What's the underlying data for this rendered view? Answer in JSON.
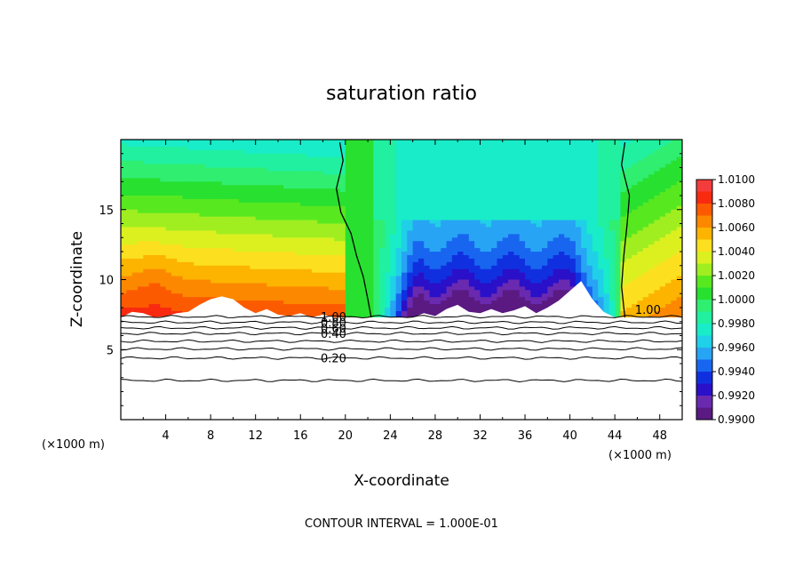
{
  "chart_data": {
    "type": "heatmap",
    "title": "saturation ratio",
    "xlabel": "X-coordinate",
    "ylabel": "Z-coordinate",
    "x_units": "(×1000 m)",
    "z_units": "(×1000 m)",
    "xlim": [
      0,
      50
    ],
    "ylim": [
      0,
      20
    ],
    "x_ticks": [
      "4",
      "8",
      "12",
      "16",
      "20",
      "24",
      "28",
      "32",
      "36",
      "40",
      "44",
      "48"
    ],
    "y_ticks": [
      "5",
      "10",
      "15"
    ],
    "colorbar": {
      "min": 0.99,
      "max": 1.01,
      "step": 0.001,
      "labels": [
        "1.0100",
        "1.0080",
        "1.0060",
        "1.0040",
        "1.0020",
        "1.0000",
        "0.9980",
        "0.9960",
        "0.9940",
        "0.9920",
        "0.9900"
      ],
      "colors": [
        "#5a1a82",
        "#6a2ab0",
        "#2a10c8",
        "#1030e0",
        "#1866f0",
        "#28a4f4",
        "#20d0e8",
        "#18ecc8",
        "#20f0a0",
        "#30ee70",
        "#28e030",
        "#58e820",
        "#a0ee20",
        "#dcf020",
        "#fce020",
        "#fcb400",
        "#fc8800",
        "#fc5a00",
        "#f82a10",
        "#f43c3c",
        "#f48c8c"
      ]
    },
    "contour_labels": [
      "1.00",
      "0.80",
      "0.60",
      "0.40",
      "0.20",
      "1.00"
    ],
    "contour_interval": "CONTOUR INTERVAL = 1.000E-01",
    "ground_profile": [
      [
        0,
        7.3
      ],
      [
        1,
        7.7
      ],
      [
        2,
        7.6
      ],
      [
        3,
        7.3
      ],
      [
        4,
        7.4
      ],
      [
        5,
        7.6
      ],
      [
        6,
        7.7
      ],
      [
        7,
        8.2
      ],
      [
        8,
        8.6
      ],
      [
        9,
        8.8
      ],
      [
        10,
        8.6
      ],
      [
        11,
        8.0
      ],
      [
        12,
        7.6
      ],
      [
        13,
        7.9
      ],
      [
        14,
        7.5
      ],
      [
        15,
        7.4
      ],
      [
        16,
        7.6
      ],
      [
        17,
        7.3
      ],
      [
        18,
        7.5
      ],
      [
        19,
        7.3
      ],
      [
        20,
        7.3
      ],
      [
        22,
        7.3
      ],
      [
        24,
        7.3
      ],
      [
        26,
        7.3
      ],
      [
        27,
        7.6
      ],
      [
        28,
        7.4
      ],
      [
        29,
        7.9
      ],
      [
        30,
        8.2
      ],
      [
        31,
        7.7
      ],
      [
        32,
        7.6
      ],
      [
        33,
        7.9
      ],
      [
        34,
        7.6
      ],
      [
        35,
        7.8
      ],
      [
        36,
        8.1
      ],
      [
        37,
        7.6
      ],
      [
        38,
        8.0
      ],
      [
        39,
        8.5
      ],
      [
        40,
        9.2
      ],
      [
        41,
        9.9
      ],
      [
        42,
        8.6
      ],
      [
        43,
        7.7
      ],
      [
        44,
        7.3
      ],
      [
        46,
        7.3
      ],
      [
        48,
        7.3
      ],
      [
        50,
        7.3
      ]
    ],
    "one_contour_left": [
      [
        19.5,
        19.8
      ],
      [
        19.8,
        18.5
      ],
      [
        19.2,
        16.5
      ],
      [
        19.6,
        14.8
      ],
      [
        20.5,
        13.3
      ],
      [
        21.0,
        11.7
      ],
      [
        21.6,
        10.2
      ],
      [
        22.0,
        8.6
      ],
      [
        22.3,
        7.3
      ]
    ],
    "one_contour_right": [
      [
        44.9,
        19.8
      ],
      [
        44.6,
        18.2
      ],
      [
        45.3,
        16.0
      ],
      [
        45.1,
        14.0
      ],
      [
        44.8,
        11.7
      ],
      [
        44.6,
        9.5
      ],
      [
        44.8,
        8.0
      ],
      [
        44.9,
        7.3
      ]
    ],
    "below_contours": [
      {
        "z": 7.35,
        "label": "1.00",
        "label_x": 17.8
      },
      {
        "z": 6.95,
        "label": "0.80",
        "label_x": 17.8
      },
      {
        "z": 6.55,
        "label": "0.60",
        "label_x": 17.8
      },
      {
        "z": 6.15,
        "label": "0.40",
        "label_x": 17.8
      },
      {
        "z": 5.6,
        "label": "",
        "label_x": 0
      },
      {
        "z": 5.05,
        "label": "",
        "label_x": 0
      },
      {
        "z": 4.4,
        "label": "0.20",
        "label_x": 17.8
      },
      {
        "z": 2.8,
        "label": "",
        "label_x": 0
      }
    ]
  }
}
